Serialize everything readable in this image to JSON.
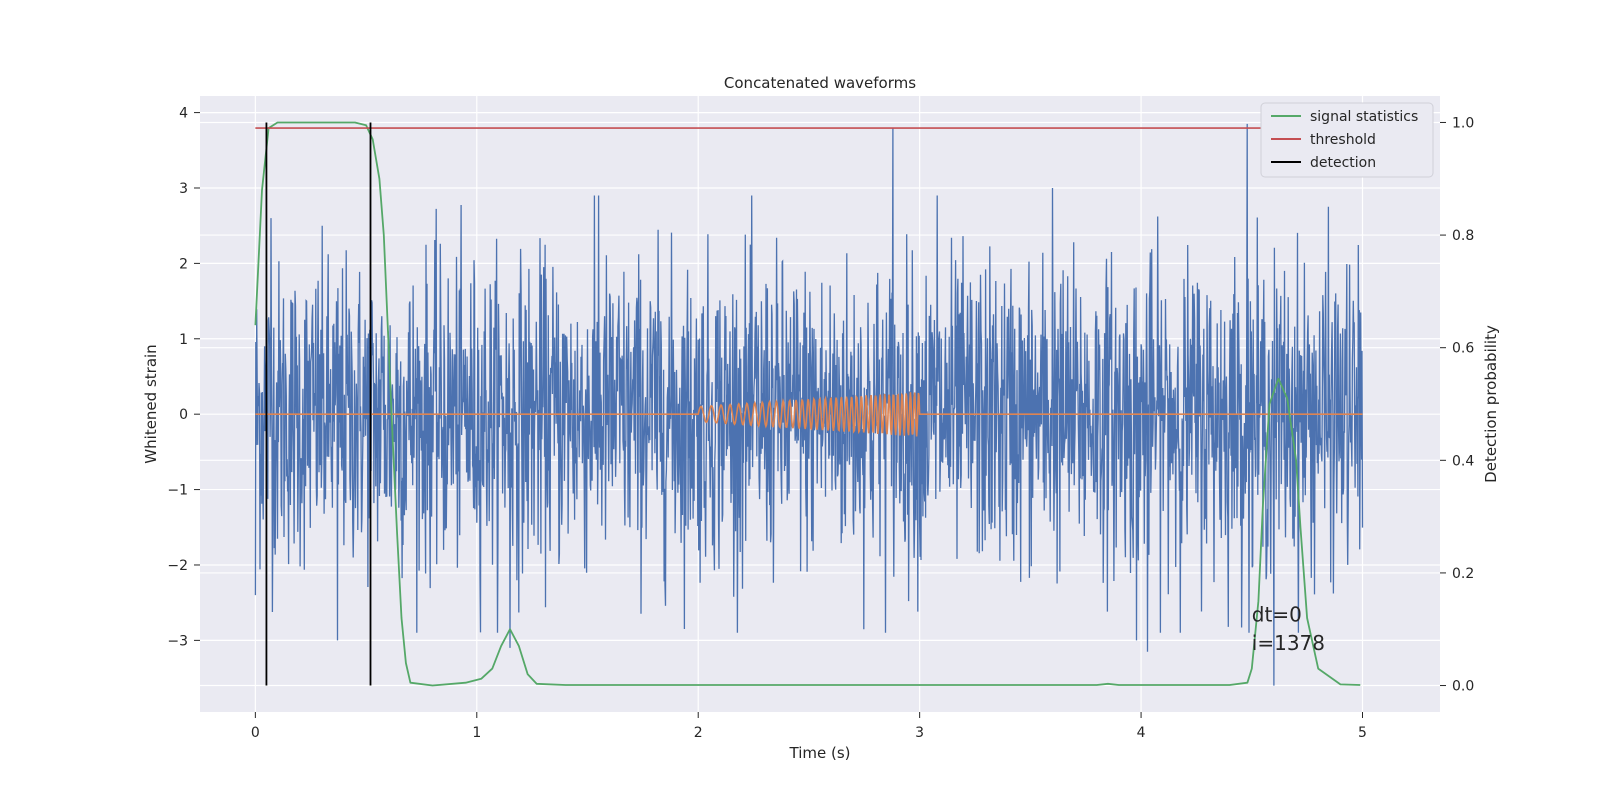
{
  "chart_data": {
    "type": "line",
    "title": "Concatenated waveforms",
    "xlabel": "Time (s)",
    "ylabel": "Whitened strain",
    "y2label": "Detection probability",
    "xlim": [
      -0.25,
      5.35
    ],
    "ylim": [
      -3.95,
      4.22
    ],
    "y2lim": [
      -0.047,
      1.047
    ],
    "xticks": [
      0,
      1,
      2,
      3,
      4,
      5
    ],
    "xtick_labels": [
      "0",
      "1",
      "2",
      "3",
      "4",
      "5"
    ],
    "yticks": [
      -3,
      -2,
      -1,
      0,
      1,
      2,
      3,
      4
    ],
    "ytick_labels": [
      "−3",
      "−2",
      "−1",
      "0",
      "1",
      "2",
      "3",
      "4"
    ],
    "y2ticks": [
      0.0,
      0.2,
      0.4,
      0.6,
      0.8,
      1.0
    ],
    "y2tick_labels": [
      "0.0",
      "0.2",
      "0.4",
      "0.6",
      "0.8",
      "1.0"
    ],
    "grid": true,
    "legend_position": "top-right",
    "series": [
      {
        "type": "noise",
        "axis": "left",
        "color": "#4c72b0",
        "x_range": [
          0,
          5
        ],
        "typical_amplitude": 1.0,
        "peak_values": [
          {
            "x": 0.0,
            "y": -2.4
          },
          {
            "x": 0.07,
            "y": 2.6
          },
          {
            "x": 0.37,
            "y": -3.0
          },
          {
            "x": 1.15,
            "y": -3.1
          },
          {
            "x": 1.55,
            "y": 2.9
          },
          {
            "x": 2.88,
            "y": 3.8
          },
          {
            "x": 3.08,
            "y": 2.9
          },
          {
            "x": 3.6,
            "y": 3.0
          },
          {
            "x": 3.98,
            "y": -3.0
          },
          {
            "x": 4.03,
            "y": -3.15
          },
          {
            "x": 4.48,
            "y": 3.85
          },
          {
            "x": 4.6,
            "y": -3.6
          }
        ]
      },
      {
        "type": "chirp",
        "axis": "left",
        "color": "#dd8452",
        "x_range": [
          0,
          5
        ],
        "chirp_start": 2.0,
        "chirp_end": 3.0,
        "amp_start": 0.1,
        "amp_end": 0.3,
        "freq_start": 20,
        "freq_end": 55
      },
      {
        "name": "signal statistics",
        "axis": "right",
        "color": "#55a868",
        "x": [
          0.0,
          0.03,
          0.06,
          0.1,
          0.2,
          0.45,
          0.5,
          0.53,
          0.56,
          0.58,
          0.6,
          0.62,
          0.64,
          0.66,
          0.68,
          0.7,
          0.8,
          0.95,
          1.02,
          1.07,
          1.11,
          1.15,
          1.19,
          1.23,
          1.27,
          1.4,
          2.0,
          3.0,
          3.8,
          3.85,
          3.9,
          4.4,
          4.48,
          4.5,
          4.53,
          4.55,
          4.58,
          4.62,
          4.66,
          4.7,
          4.72,
          4.75,
          4.8,
          4.9,
          4.99
        ],
        "y": [
          0.64,
          0.88,
          0.99,
          1.0,
          1.0,
          1.0,
          0.995,
          0.97,
          0.9,
          0.8,
          0.62,
          0.44,
          0.27,
          0.12,
          0.04,
          0.005,
          0.0,
          0.005,
          0.012,
          0.03,
          0.07,
          0.1,
          0.07,
          0.02,
          0.003,
          0.001,
          0.001,
          0.001,
          0.001,
          0.003,
          0.001,
          0.001,
          0.005,
          0.03,
          0.15,
          0.32,
          0.5,
          0.545,
          0.51,
          0.4,
          0.28,
          0.12,
          0.03,
          0.002,
          0.001
        ]
      },
      {
        "name": "threshold",
        "axis": "right",
        "color": "#c44e52",
        "x": [
          0,
          4.99
        ],
        "y": [
          0.99,
          0.99
        ]
      },
      {
        "name": "detection",
        "axis": "right",
        "color": "#000000",
        "vlines": [
          0.05,
          0.52
        ],
        "ymin": 0.0,
        "ymax": 1.0
      }
    ],
    "annotations": [
      {
        "text": "dt=0",
        "x": 4.5,
        "y": -2.75
      },
      {
        "text": "i=1378",
        "x": 4.5,
        "y": -3.13
      }
    ]
  }
}
